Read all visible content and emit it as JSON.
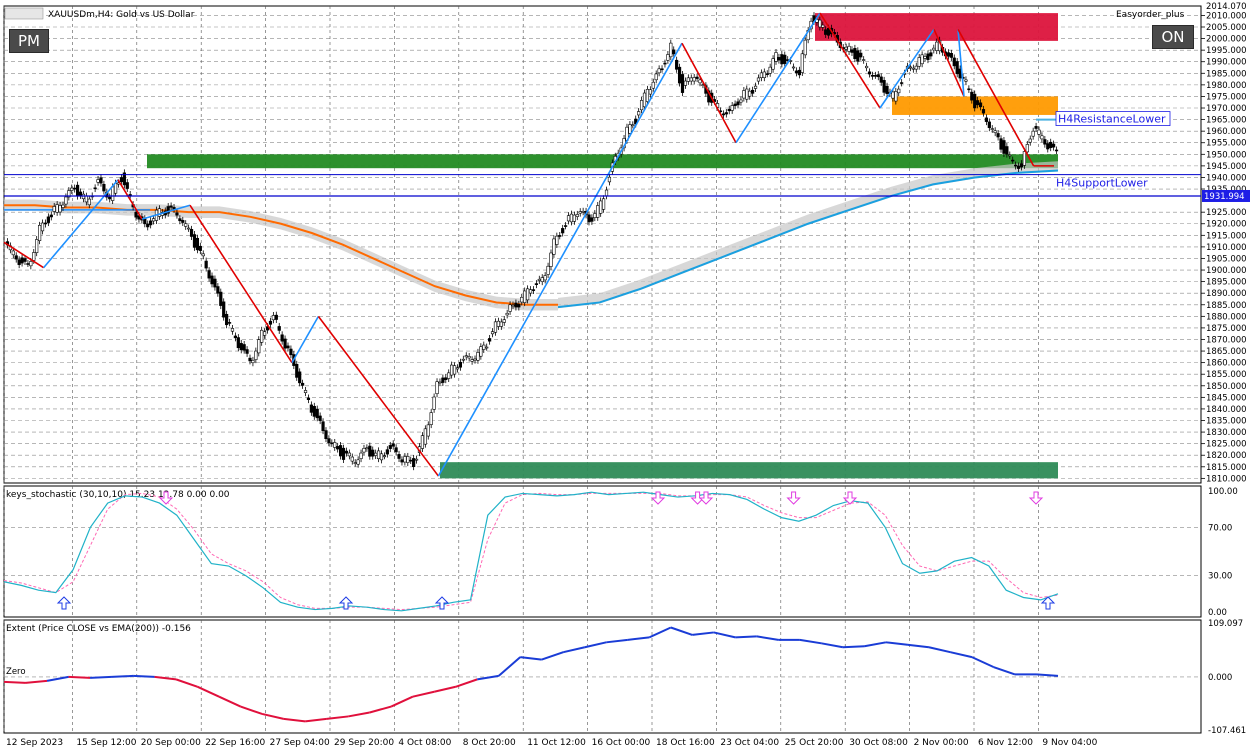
{
  "header": {
    "symbol_title": "XAUUSDm,H4:  Gold vs US Dollar",
    "indicator_name": "Easyorder_plus"
  },
  "buttons": {
    "pm": "PM",
    "on": "ON"
  },
  "labels": {
    "resistance": "H4ResistanceLower",
    "support": "H4SupportLower",
    "current_price": "1931.994"
  },
  "colors": {
    "up_trend": "#1e90ff",
    "down_trend": "#e00000",
    "supply_zone": "#dc143c",
    "resistance_zone": "#ff9a00",
    "demand_zone": "#228b22",
    "support_zone": "#2e8b57",
    "ema_orange": "#ff6a00",
    "ema_blue": "#1e90ff",
    "price_line": "#0000cd",
    "stoch_main": "#20b2c8",
    "stoch_signal": "#ff69b4",
    "extent_positive": "#1a3cd6",
    "extent_negative": "#e0103c"
  },
  "chart_data": [
    {
      "type": "candlestick",
      "title": "XAUUSDm,H4:  Gold vs US Dollar",
      "ylim": [
        1808,
        2014.07
      ],
      "y_axis_ticks": [
        "2010.000",
        "2005.000",
        "2000.000",
        "1995.000",
        "1990.000",
        "1985.000",
        "1980.000",
        "1975.000",
        "1970.000",
        "1965.000",
        "1960.000",
        "1955.000",
        "1950.000",
        "1945.000",
        "1940.000",
        "1935.000",
        "1925.000",
        "1920.000",
        "1915.000",
        "1910.000",
        "1905.000",
        "1900.000",
        "1895.000",
        "1890.000",
        "1885.000",
        "1880.000",
        "1875.000",
        "1870.000",
        "1865.000",
        "1860.000",
        "1855.000",
        "1850.000",
        "1845.000",
        "1840.000",
        "1835.000",
        "1830.000",
        "1825.000",
        "1820.000",
        "1815.000",
        "1810.000"
      ],
      "y_axis_top_label": "2014.070",
      "x_axis_ticks": [
        "12 Sep 2023",
        "15 Sep 12:00",
        "20 Sep 00:00",
        "22 Sep 16:00",
        "27 Sep 04:00",
        "29 Sep 20:00",
        "4 Oct 08:00",
        "8 Oct 20:00",
        "11 Oct 12:00",
        "16 Oct 00:00",
        "18 Oct 16:00",
        "23 Oct 04:00",
        "25 Oct 20:00",
        "30 Oct 08:00",
        "2 Nov 00:00",
        "6 Nov 12:00",
        "9 Nov 04:00"
      ],
      "price_path": [
        1912,
        1905,
        1901,
        1918,
        1924,
        1930,
        1935,
        1930,
        1938,
        1932,
        1940,
        1927,
        1918,
        1925,
        1926,
        1923,
        1914,
        1905,
        1892,
        1878,
        1868,
        1860,
        1872,
        1880,
        1868,
        1855,
        1843,
        1833,
        1825,
        1820,
        1818,
        1822,
        1820,
        1823,
        1819,
        1816,
        1830,
        1850,
        1856,
        1860,
        1862,
        1866,
        1876,
        1882,
        1886,
        1892,
        1895,
        1912,
        1920,
        1926,
        1921,
        1928,
        1945,
        1958,
        1965,
        1978,
        1985,
        1997,
        1978,
        1985,
        1976,
        1970,
        1968,
        1975,
        1978,
        1985,
        1992,
        1990,
        1986,
        2009,
        2005,
        2000,
        1996,
        1992,
        1986,
        1980,
        1975,
        1985,
        1990,
        1992,
        1998,
        1990,
        1983,
        1972,
        1965,
        1956,
        1948,
        1945,
        1962,
        1955,
        1950
      ],
      "zigzag": [
        {
          "x_frac": 0.0,
          "y": 1912
        },
        {
          "x_frac": 0.033,
          "y": 1901
        },
        {
          "x_frac": 0.095,
          "y": 1939
        },
        {
          "x_frac": 0.115,
          "y": 1922
        },
        {
          "x_frac": 0.155,
          "y": 1928
        },
        {
          "x_frac": 0.24,
          "y": 1860
        },
        {
          "x_frac": 0.262,
          "y": 1880
        },
        {
          "x_frac": 0.362,
          "y": 1811
        },
        {
          "x_frac": 0.565,
          "y": 1998
        },
        {
          "x_frac": 0.61,
          "y": 1955
        },
        {
          "x_frac": 0.68,
          "y": 2011
        },
        {
          "x_frac": 0.73,
          "y": 1970
        },
        {
          "x_frac": 0.775,
          "y": 2004
        },
        {
          "x_frac": 0.8,
          "y": 1975
        },
        {
          "x_frac": 0.795,
          "y": 2004
        },
        {
          "x_frac": 0.858,
          "y": 1945
        },
        {
          "x_frac": 0.875,
          "y": 1945
        }
      ],
      "ema_orange": [
        1928,
        1928,
        1927,
        1927,
        1926,
        1926,
        1925,
        1925,
        1923,
        1920,
        1916,
        1911,
        1905,
        1899,
        1893,
        1889,
        1886,
        1885,
        1885
      ],
      "ema_blue": [
        1926,
        1926,
        1926,
        1926,
        1884,
        1886,
        1892,
        1899,
        1906,
        1913,
        1920,
        1926,
        1932,
        1937,
        1940,
        1942,
        1943
      ],
      "levels": {
        "current_price": 1931.994,
        "h4_support_lower": 1941.2,
        "h4_resistance_lower": 1965.0
      },
      "zones": [
        {
          "name": "supply",
          "y_top": 2011,
          "y_bottom": 1999
        },
        {
          "name": "resistance",
          "y_top": 1975,
          "y_bottom": 1967
        },
        {
          "name": "demand",
          "y_top": 1950,
          "y_bottom": 1944
        },
        {
          "name": "support",
          "y_top": 1817,
          "y_bottom": 1810
        }
      ]
    },
    {
      "type": "line",
      "title": "keys_stochastic (30,10,10) 15.23 13.78 0.00 0.00",
      "ylim": [
        0,
        100
      ],
      "y_axis_ticks": [
        "100.00",
        "70.00",
        "30.00",
        "0.00"
      ],
      "series": [
        {
          "values": [
            25,
            22,
            18,
            16,
            35,
            70,
            90,
            96,
            95,
            90,
            80,
            60,
            40,
            38,
            30,
            20,
            8,
            4,
            2,
            3,
            5,
            4,
            2,
            1,
            3,
            5,
            8,
            10,
            80,
            95,
            98,
            97,
            96,
            97,
            99,
            97,
            98,
            99,
            97,
            95,
            96,
            98,
            97,
            93,
            85,
            78,
            75,
            80,
            88,
            92,
            90,
            70,
            40,
            32,
            34,
            42,
            45,
            38,
            18,
            12,
            10,
            15
          ]
        },
        {
          "values": [
            26,
            24,
            20,
            16,
            25,
            55,
            85,
            97,
            98,
            95,
            85,
            68,
            48,
            40,
            34,
            25,
            12,
            6,
            3,
            3,
            4,
            4,
            3,
            2,
            3,
            4,
            6,
            8,
            60,
            90,
            97,
            98,
            97,
            97,
            98,
            98,
            98,
            98,
            98,
            96,
            96,
            97,
            97,
            95,
            88,
            82,
            78,
            78,
            84,
            90,
            91,
            80,
            55,
            38,
            34,
            38,
            42,
            42,
            28,
            16,
            12,
            14
          ]
        }
      ],
      "arrows_up": [
        0.05,
        0.285,
        0.365,
        0.87
      ],
      "arrows_down": [
        0.135,
        0.545,
        0.578,
        0.585,
        0.658,
        0.705,
        0.86
      ]
    },
    {
      "type": "line",
      "title": "Extent (Price CLOSE vs EMA(200)) -0.156",
      "ylim": [
        -107.461,
        109.097
      ],
      "y_axis_ticks": [
        "109.097",
        "0.000",
        "-107.461"
      ],
      "zero_label": "Zero",
      "values": [
        -10,
        -12,
        -8,
        0,
        -2,
        0,
        2,
        0,
        -5,
        -20,
        -40,
        -60,
        -75,
        -85,
        -90,
        -85,
        -80,
        -72,
        -60,
        -40,
        -30,
        -20,
        -5,
        2,
        40,
        35,
        50,
        60,
        70,
        75,
        80,
        100,
        85,
        90,
        80,
        82,
        75,
        75,
        68,
        60,
        62,
        70,
        65,
        60,
        50,
        40,
        20,
        5,
        5,
        2
      ]
    }
  ]
}
